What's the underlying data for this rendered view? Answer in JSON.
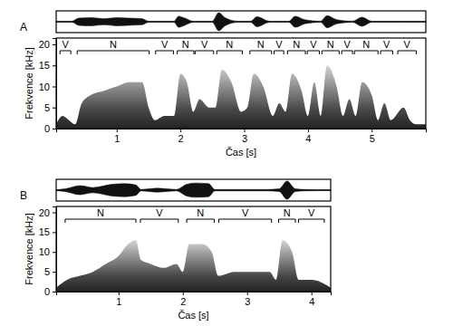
{
  "chart_data": [
    {
      "type": "spectrogram",
      "title": "A",
      "x_label": "Čas [s]",
      "y_label": "Frekvence [kHz]",
      "xlim": [
        0.05,
        5.85
      ],
      "xticks": [
        1,
        2,
        3,
        4,
        5
      ],
      "ylim": [
        0,
        21.5
      ],
      "yticks": [
        0,
        5,
        10,
        15,
        20
      ],
      "segments": {
        "labels": [
          "V",
          "N",
          "V",
          "N",
          "V",
          "N",
          "N",
          "V",
          "N",
          "V",
          "N",
          "V",
          "N",
          "V",
          "V"
        ],
        "starts": [
          0.11,
          0.38,
          1.61,
          1.95,
          2.23,
          2.57,
          3.09,
          3.47,
          3.68,
          3.99,
          4.22,
          4.53,
          4.73,
          5.14,
          5.41
        ],
        "ends": [
          0.28,
          1.51,
          1.89,
          2.21,
          2.52,
          2.97,
          3.43,
          3.62,
          3.96,
          4.18,
          4.49,
          4.7,
          5.1,
          5.33,
          5.7
        ]
      },
      "spectrum": {
        "x": [
          0.05,
          0.15,
          0.25,
          0.35,
          0.45,
          0.6,
          0.8,
          1.0,
          1.2,
          1.4,
          1.5,
          1.6,
          1.75,
          1.9,
          2.0,
          2.1,
          2.2,
          2.3,
          2.45,
          2.55,
          2.65,
          2.8,
          2.95,
          3.05,
          3.15,
          3.3,
          3.45,
          3.55,
          3.65,
          3.75,
          3.9,
          4.0,
          4.1,
          4.2,
          4.3,
          4.45,
          4.55,
          4.65,
          4.75,
          4.85,
          5.0,
          5.1,
          5.2,
          5.3,
          5.5,
          5.6,
          5.7,
          5.85
        ],
        "values": [
          1,
          3,
          2,
          1,
          6,
          8,
          9,
          10,
          11,
          11,
          5,
          2,
          3,
          3,
          13,
          11,
          4,
          7,
          5,
          5,
          14,
          11,
          4,
          5,
          13,
          10,
          3,
          6,
          4,
          13,
          9,
          3,
          11,
          3,
          15,
          10,
          3,
          7,
          3,
          11,
          8,
          2,
          6,
          2,
          5,
          2,
          1,
          1
        ]
      },
      "waveform": {
        "x": [
          0.05,
          0.3,
          0.4,
          0.6,
          0.8,
          1.0,
          1.2,
          1.4,
          1.5,
          1.6,
          1.9,
          1.97,
          2.05,
          2.2,
          2.5,
          2.6,
          2.7,
          2.9,
          3.1,
          3.2,
          3.4,
          3.7,
          3.8,
          3.95,
          4.2,
          4.3,
          4.45,
          4.7,
          4.85,
          5.0,
          5.5,
          5.85
        ],
        "values": [
          0.05,
          0.05,
          0.35,
          0.4,
          0.3,
          0.4,
          0.35,
          0.3,
          0.05,
          0.05,
          0.05,
          0.55,
          0.4,
          0.05,
          0.05,
          0.9,
          0.4,
          0.05,
          0.05,
          0.5,
          0.05,
          0.05,
          0.55,
          0.2,
          0.05,
          0.6,
          0.2,
          0.05,
          0.45,
          0.05,
          0.05,
          0.05
        ]
      }
    },
    {
      "type": "spectrogram",
      "title": "B",
      "x_label": "Čas [s]",
      "y_label": "Frekvence [kHz]",
      "xlim": [
        0.03,
        4.3
      ],
      "xticks": [
        1,
        2,
        3,
        4
      ],
      "ylim": [
        0,
        21.5
      ],
      "yticks": [
        0,
        5,
        10,
        15,
        20
      ],
      "segments": {
        "labels": [
          "N",
          "V",
          "N",
          "V",
          "N",
          "V"
        ],
        "starts": [
          0.17,
          1.34,
          2.06,
          2.56,
          3.49,
          3.8
        ],
        "ends": [
          1.27,
          1.93,
          2.49,
          3.38,
          3.75,
          4.2
        ]
      },
      "spectrum": {
        "x": [
          0.03,
          0.2,
          0.4,
          0.6,
          0.8,
          1.0,
          1.15,
          1.27,
          1.35,
          1.5,
          1.7,
          1.9,
          2.0,
          2.1,
          2.3,
          2.45,
          2.55,
          2.8,
          3.1,
          3.35,
          3.45,
          3.55,
          3.7,
          3.8,
          4.0,
          4.3
        ],
        "values": [
          1,
          3,
          4,
          5,
          7,
          9,
          12,
          13,
          8,
          7,
          6,
          7,
          5,
          12,
          12,
          10,
          4,
          5,
          5,
          5,
          3,
          13,
          10,
          3,
          3,
          1
        ]
      },
      "waveform": {
        "x": [
          0.03,
          0.17,
          0.4,
          0.6,
          0.9,
          1.1,
          1.27,
          1.35,
          1.6,
          1.9,
          2.06,
          2.2,
          2.4,
          2.5,
          2.8,
          3.3,
          3.5,
          3.62,
          3.75,
          3.9,
          4.3
        ],
        "values": [
          0.03,
          0.1,
          0.35,
          0.2,
          0.45,
          0.5,
          0.4,
          0.05,
          0.15,
          0.05,
          0.45,
          0.55,
          0.5,
          0.05,
          0.05,
          0.05,
          0.1,
          0.7,
          0.1,
          0.05,
          0.03
        ]
      }
    }
  ]
}
